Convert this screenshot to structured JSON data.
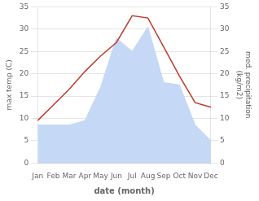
{
  "chart_data": {
    "type": "line",
    "categories": [
      "Jan",
      "Feb",
      "Mar",
      "Apr",
      "May",
      "Jun",
      "Jul",
      "Aug",
      "Sep",
      "Oct",
      "Nov",
      "Dec"
    ],
    "series": [
      {
        "type": "line",
        "color": "#c0392b",
        "values": [
          9.5,
          13.0,
          16.5,
          20.5,
          24.0,
          27.0,
          33.0,
          32.5,
          26.0,
          19.5,
          13.5,
          12.5
        ]
      },
      {
        "type": "area",
        "color": "#c5d8f5",
        "axis": "y2",
        "values": [
          8.5,
          8.5,
          8.5,
          9.5,
          17.0,
          28.0,
          25.0,
          30.5,
          18.0,
          17.5,
          8.5,
          5.0
        ]
      }
    ],
    "xlabel": "date (month)",
    "ylabel": "max temp (C)",
    "y2label": "med. precipitation\n(kg/m2)",
    "ylim": [
      0,
      35
    ],
    "yticks": [
      0,
      5,
      10,
      15,
      20,
      25,
      30,
      35
    ],
    "y2lim": [
      0,
      35
    ],
    "y2ticks": [
      0,
      5,
      10,
      15,
      20,
      25,
      30,
      35
    ],
    "grid": true
  }
}
